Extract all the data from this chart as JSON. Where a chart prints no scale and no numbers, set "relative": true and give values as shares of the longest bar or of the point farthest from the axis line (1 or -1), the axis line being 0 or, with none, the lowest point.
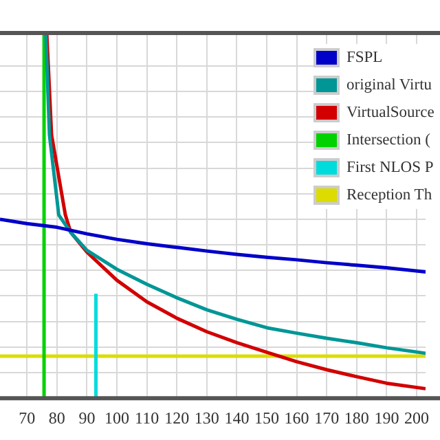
{
  "chart_data": {
    "type": "line",
    "relative": true,
    "xlim": [
      61,
      203
    ],
    "xticks": [
      70,
      80,
      90,
      100,
      110,
      120,
      130,
      140,
      150,
      160,
      170,
      180,
      190,
      200
    ],
    "grid": true,
    "legend": "top right",
    "marker": "none",
    "line_style": "solid",
    "series": [
      {
        "name": "FSPL",
        "color": "#0000c8",
        "x": [
          61,
          70,
          80,
          90,
          100,
          110,
          120,
          130,
          140,
          150,
          160,
          170,
          180,
          190,
          203
        ],
        "values": [
          0.49,
          0.478,
          0.468,
          0.45,
          0.435,
          0.423,
          0.413,
          0.403,
          0.394,
          0.386,
          0.379,
          0.371,
          0.364,
          0.357,
          0.346
        ]
      },
      {
        "name": "original Virtu",
        "color": "#009696",
        "x": [
          76.3,
          77.5,
          80.6,
          84.6,
          90,
          100,
          110,
          120,
          130,
          140,
          150,
          160,
          170,
          180,
          190,
          203
        ],
        "values": [
          1,
          0.721,
          0.502,
          0.454,
          0.405,
          0.353,
          0.312,
          0.275,
          0.242,
          0.216,
          0.193,
          0.178,
          0.164,
          0.152,
          0.138,
          0.123
        ]
      },
      {
        "name": "VirtualSource",
        "color": "#d20000",
        "x": [
          76.6,
          78.2,
          82.8,
          84.6,
          90,
          100,
          110,
          120,
          130,
          140,
          150,
          160,
          170,
          180,
          190,
          203
        ],
        "values": [
          1,
          0.721,
          0.502,
          0.454,
          0.4,
          0.323,
          0.264,
          0.219,
          0.182,
          0.152,
          0.126,
          0.1,
          0.078,
          0.059,
          0.041,
          0.026
        ]
      },
      {
        "name": "Intersection (",
        "color": "#00d200",
        "x": [
          75.7,
          75.7
        ],
        "values": [
          0,
          1
        ]
      },
      {
        "name": "First NLOS P",
        "color": "#00dcdc",
        "x": [
          93,
          93
        ],
        "values": [
          0,
          0.286
        ]
      },
      {
        "name": "Reception Th",
        "color": "#dcdc00",
        "x": [
          61,
          203
        ],
        "values": [
          0.115,
          0.115
        ]
      }
    ]
  }
}
